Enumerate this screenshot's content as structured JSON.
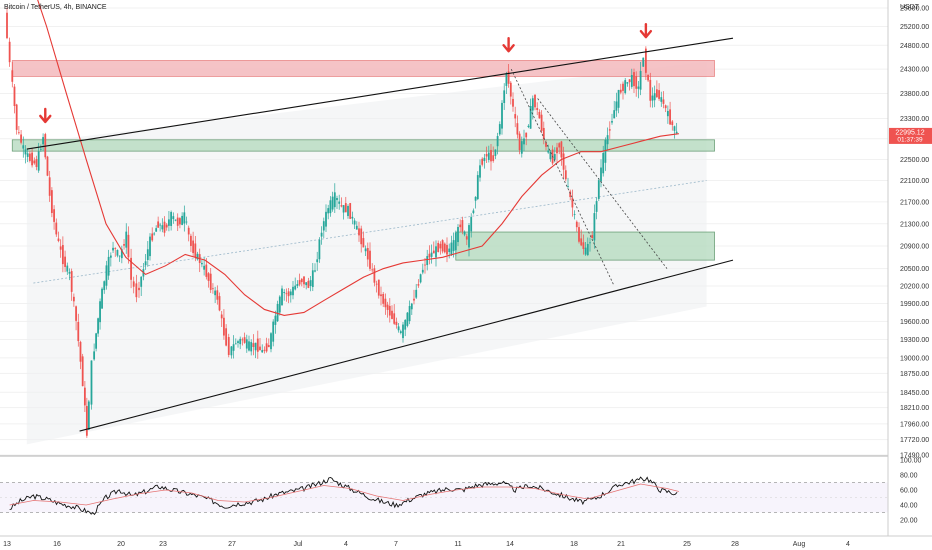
{
  "header": {
    "title": "Bitcoin / TetherUS, 4h, BINANCE"
  },
  "colors": {
    "bull": "#26a69a",
    "bear": "#ef5350",
    "ma": "#e53935",
    "resistance_zone": "#f4b9bd",
    "support_zone": "#b7dcc1",
    "arrow": "#e53935",
    "trendline": "#111111",
    "rsi": "#111111",
    "rsi_ma": "#e57373",
    "price_badge": "#ef5350"
  },
  "price_axis": {
    "unit": "USDT",
    "labels": [
      "25600.00",
      "25200.00",
      "24800.00",
      "24300.00",
      "23800.00",
      "23300.00",
      "22900.00",
      "22500.00",
      "22100.00",
      "21700.00",
      "21300.00",
      "20900.00",
      "20500.00",
      "20200.00",
      "19900.00",
      "19600.00",
      "19300.00",
      "19000.00",
      "18750.00",
      "18450.00",
      "18210.00",
      "17960.00",
      "17720.00",
      "17490.00"
    ],
    "current_price": "22995.12",
    "countdown": "01:37:39"
  },
  "time_axis": {
    "labels": [
      "13",
      "16",
      "20",
      "23",
      "27",
      "Jul",
      "4",
      "7",
      "11",
      "14",
      "18",
      "21",
      "25",
      "28",
      "Aug",
      "4"
    ]
  },
  "rsi_axis": {
    "labels": [
      "100.00",
      "80.00",
      "60.00",
      "40.00",
      "20.00"
    ]
  },
  "chart_data": [
    {
      "type": "candlestick",
      "symbol": "Bitcoin / TetherUS",
      "interval": "4h",
      "exchange": "BINANCE",
      "y_scale": "log",
      "ylim": [
        17490,
        25600
      ],
      "x_range": [
        "Jun 13",
        "Aug 5"
      ],
      "current_price": 22995.12,
      "price_path": [
        [
          13.0,
          25500
        ],
        [
          13.4,
          24400
        ],
        [
          13.9,
          23100
        ],
        [
          14.4,
          22700
        ],
        [
          14.9,
          22500
        ],
        [
          15.4,
          22400
        ],
        [
          15.9,
          22950
        ],
        [
          16.4,
          21800
        ],
        [
          16.9,
          21100
        ],
        [
          17.4,
          20650
        ],
        [
          17.9,
          20400
        ],
        [
          18.4,
          19600
        ],
        [
          18.9,
          18600
        ],
        [
          19.2,
          17800
        ],
        [
          19.6,
          18900
        ],
        [
          20.2,
          19900
        ],
        [
          20.7,
          20500
        ],
        [
          21.2,
          20900
        ],
        [
          21.7,
          20700
        ],
        [
          22.2,
          21100
        ],
        [
          22.6,
          20300
        ],
        [
          23.0,
          20050
        ],
        [
          23.5,
          20500
        ],
        [
          24.0,
          21000
        ],
        [
          24.6,
          21300
        ],
        [
          25.1,
          21200
        ],
        [
          25.6,
          21450
        ],
        [
          26.1,
          21300
        ],
        [
          26.6,
          21450
        ],
        [
          27.1,
          20900
        ],
        [
          27.6,
          20700
        ],
        [
          28.1,
          20500
        ],
        [
          28.6,
          20200
        ],
        [
          29.1,
          20000
        ],
        [
          29.6,
          19400
        ],
        [
          30.0,
          19100
        ],
        [
          30.5,
          19250
        ],
        [
          31.0,
          19300
        ],
        [
          31.5,
          19200
        ],
        [
          32.0,
          19200
        ],
        [
          32.5,
          19100
        ],
        [
          33.0,
          19200
        ],
        [
          33.5,
          19700
        ],
        [
          34.0,
          20100
        ],
        [
          34.5,
          20050
        ],
        [
          35.0,
          20200
        ],
        [
          35.5,
          20300
        ],
        [
          36.0,
          20200
        ],
        [
          36.5,
          20500
        ],
        [
          37.0,
          21200
        ],
        [
          37.5,
          21600
        ],
        [
          38.0,
          21800
        ],
        [
          38.5,
          21600
        ],
        [
          39.0,
          21550
        ],
        [
          39.5,
          21300
        ],
        [
          40.0,
          21000
        ],
        [
          40.5,
          20700
        ],
        [
          41.0,
          20300
        ],
        [
          41.5,
          20000
        ],
        [
          42.0,
          19800
        ],
        [
          42.5,
          19600
        ],
        [
          43.0,
          19400
        ],
        [
          43.5,
          19700
        ],
        [
          44.0,
          20000
        ],
        [
          44.5,
          20400
        ],
        [
          45.0,
          20700
        ],
        [
          45.5,
          20800
        ],
        [
          46.0,
          20900
        ],
        [
          46.5,
          20800
        ],
        [
          47.0,
          20950
        ],
        [
          47.5,
          21300
        ],
        [
          48.0,
          21000
        ],
        [
          48.5,
          21600
        ],
        [
          49.0,
          22400
        ],
        [
          49.5,
          22600
        ],
        [
          50.0,
          22500
        ],
        [
          50.5,
          23200
        ],
        [
          51.0,
          24250
        ],
        [
          51.5,
          23500
        ],
        [
          52.0,
          22700
        ],
        [
          52.5,
          23000
        ],
        [
          53.0,
          23700
        ],
        [
          53.5,
          23300
        ],
        [
          54.0,
          22700
        ],
        [
          54.5,
          22500
        ],
        [
          55.0,
          22800
        ],
        [
          55.5,
          22100
        ],
        [
          56.0,
          21600
        ],
        [
          56.5,
          21000
        ],
        [
          57.0,
          20800
        ],
        [
          57.5,
          21100
        ],
        [
          58.0,
          22100
        ],
        [
          58.5,
          22800
        ],
        [
          59.0,
          23300
        ],
        [
          59.5,
          23800
        ],
        [
          60.0,
          24000
        ],
        [
          60.5,
          24100
        ],
        [
          61.0,
          23900
        ],
        [
          61.4,
          24600
        ],
        [
          61.9,
          23700
        ],
        [
          62.4,
          23800
        ],
        [
          62.9,
          23600
        ],
        [
          63.4,
          23250
        ],
        [
          63.9,
          22995
        ]
      ],
      "moving_average_path": [
        [
          14.5,
          26500
        ],
        [
          16.0,
          25200
        ],
        [
          17.5,
          23800
        ],
        [
          19.0,
          22500
        ],
        [
          20.5,
          21300
        ],
        [
          22.0,
          20700
        ],
        [
          23.5,
          20400
        ],
        [
          25.0,
          20550
        ],
        [
          26.5,
          20750
        ],
        [
          28.0,
          20650
        ],
        [
          29.5,
          20400
        ],
        [
          31.0,
          20050
        ],
        [
          32.5,
          19800
        ],
        [
          34.0,
          19700
        ],
        [
          35.5,
          19750
        ],
        [
          37.0,
          19950
        ],
        [
          38.5,
          20150
        ],
        [
          40.0,
          20350
        ],
        [
          41.5,
          20500
        ],
        [
          43.0,
          20600
        ],
        [
          44.5,
          20650
        ],
        [
          46.0,
          20700
        ],
        [
          47.5,
          20800
        ],
        [
          49.0,
          20900
        ],
        [
          50.5,
          21300
        ],
        [
          52.0,
          21800
        ],
        [
          53.5,
          22200
        ],
        [
          55.0,
          22500
        ],
        [
          56.5,
          22650
        ],
        [
          58.0,
          22650
        ],
        [
          59.5,
          22750
        ],
        [
          61.0,
          22850
        ],
        [
          62.5,
          22950
        ],
        [
          63.9,
          23000
        ]
      ],
      "rsi_path": [
        [
          13.2,
          35
        ],
        [
          14.0,
          45
        ],
        [
          15.0,
          52
        ],
        [
          16.0,
          48
        ],
        [
          17.0,
          42
        ],
        [
          18.0,
          38
        ],
        [
          19.0,
          32
        ],
        [
          19.5,
          28
        ],
        [
          20.5,
          50
        ],
        [
          21.5,
          60
        ],
        [
          22.5,
          52
        ],
        [
          23.5,
          58
        ],
        [
          24.5,
          65
        ],
        [
          25.5,
          60
        ],
        [
          26.5,
          56
        ],
        [
          27.5,
          52
        ],
        [
          28.5,
          46
        ],
        [
          29.5,
          38
        ],
        [
          30.5,
          42
        ],
        [
          31.5,
          44
        ],
        [
          32.5,
          48
        ],
        [
          33.5,
          55
        ],
        [
          34.5,
          58
        ],
        [
          35.5,
          62
        ],
        [
          36.5,
          68
        ],
        [
          37.5,
          75
        ],
        [
          38.5,
          66
        ],
        [
          39.5,
          58
        ],
        [
          40.5,
          50
        ],
        [
          41.5,
          44
        ],
        [
          42.5,
          40
        ],
        [
          43.5,
          47
        ],
        [
          44.5,
          54
        ],
        [
          45.5,
          58
        ],
        [
          46.5,
          62
        ],
        [
          47.5,
          60
        ],
        [
          48.5,
          66
        ],
        [
          49.5,
          68
        ],
        [
          50.5,
          70
        ],
        [
          51.5,
          60
        ],
        [
          52.5,
          66
        ],
        [
          53.5,
          62
        ],
        [
          54.5,
          56
        ],
        [
          55.5,
          50
        ],
        [
          56.5,
          44
        ],
        [
          57.5,
          48
        ],
        [
          58.5,
          58
        ],
        [
          59.5,
          68
        ],
        [
          60.5,
          72
        ],
        [
          61.5,
          76
        ],
        [
          62.5,
          60
        ],
        [
          63.5,
          56
        ],
        [
          63.9,
          54
        ]
      ],
      "rsi_ma_path": [
        [
          13.2,
          40
        ],
        [
          15.0,
          46
        ],
        [
          17.0,
          44
        ],
        [
          19.0,
          40
        ],
        [
          21.0,
          48
        ],
        [
          23.0,
          55
        ],
        [
          25.0,
          60
        ],
        [
          27.0,
          56
        ],
        [
          29.0,
          46
        ],
        [
          31.0,
          44
        ],
        [
          33.0,
          50
        ],
        [
          35.0,
          58
        ],
        [
          37.0,
          66
        ],
        [
          39.0,
          62
        ],
        [
          41.0,
          52
        ],
        [
          43.0,
          46
        ],
        [
          45.0,
          54
        ],
        [
          47.0,
          60
        ],
        [
          49.0,
          64
        ],
        [
          51.0,
          64
        ],
        [
          53.0,
          62
        ],
        [
          55.0,
          54
        ],
        [
          57.0,
          48
        ],
        [
          59.0,
          58
        ],
        [
          61.0,
          68
        ],
        [
          63.0,
          62
        ],
        [
          63.9,
          58
        ]
      ],
      "resistance_zone": [
        24150,
        24480
      ],
      "support_zones": [
        [
          22660,
          22880
        ],
        [
          20650,
          21150
        ]
      ],
      "trendlines": [
        {
          "kind": "upper_channel",
          "from": [
            14.5,
            22700
          ],
          "to": [
            68.0,
            24950
          ]
        },
        {
          "kind": "lower_channel",
          "from": [
            18.5,
            17850
          ],
          "to": [
            68.0,
            20650
          ]
        },
        {
          "kind": "descending_dotted",
          "from": [
            51.2,
            24300
          ],
          "to": [
            59.0,
            20200
          ]
        },
        {
          "kind": "descending_dotted",
          "from": [
            53.2,
            23700
          ],
          "to": [
            63.0,
            20500
          ]
        }
      ],
      "arrows": [
        [
          15.9,
          23350
        ],
        [
          51.0,
          24800
        ],
        [
          61.4,
          25100
        ]
      ]
    },
    {
      "type": "line",
      "indicator": "RSI",
      "ylim": [
        0,
        100
      ],
      "reference_lines": [
        70,
        30
      ]
    }
  ]
}
